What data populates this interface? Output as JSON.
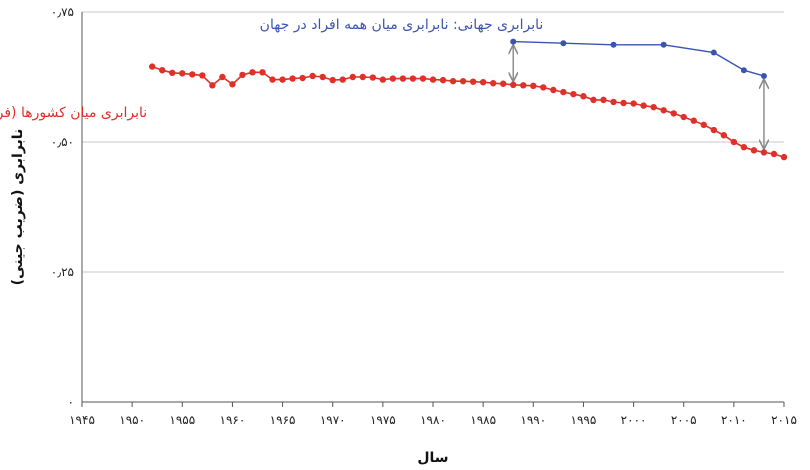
{
  "chart_data": {
    "type": "line",
    "xlabel": "سال",
    "ylabel": "نابرابری (ضریب جینی)",
    "xlim": [
      1945,
      2015
    ],
    "ylim": [
      0,
      0.75
    ],
    "x_ticks": [
      1945,
      1950,
      1955,
      1960,
      1965,
      1970,
      1975,
      1980,
      1985,
      1990,
      1995,
      2000,
      2005,
      2010,
      2015
    ],
    "x_tick_labels": [
      "۱۹۴۵",
      "۱۹۵۰",
      "۱۹۵۵",
      "۱۹۶۰",
      "۱۹۶۵",
      "۱۹۷۰",
      "۱۹۷۵",
      "۱۹۸۰",
      "۱۹۸۵",
      "۱۹۹۰",
      "۱۹۹۵",
      "۲۰۰۰",
      "۲۰۰۵",
      "۲۰۱۰",
      "۲۰۱۵"
    ],
    "y_ticks": [
      0,
      0.25,
      0.5,
      0.75
    ],
    "y_tick_labels": [
      "۰",
      "۰٫۲۵",
      "۰٫۵۰",
      "۰٫۷۵"
    ],
    "grid": "horizontal",
    "series": [
      {
        "name": "نابرابری میان کشورها (فرضی)",
        "color": "#e0302a",
        "label_at": [
          1951.5,
          0.548
        ],
        "x": [
          1952,
          1953,
          1954,
          1955,
          1956,
          1957,
          1958,
          1959,
          1960,
          1961,
          1962,
          1963,
          1964,
          1965,
          1966,
          1967,
          1968,
          1969,
          1970,
          1971,
          1972,
          1973,
          1974,
          1975,
          1976,
          1977,
          1978,
          1979,
          1980,
          1981,
          1982,
          1983,
          1984,
          1985,
          1986,
          1987,
          1988,
          1989,
          1990,
          1991,
          1992,
          1993,
          1994,
          1995,
          1996,
          1997,
          1998,
          1999,
          2000,
          2001,
          2002,
          2003,
          2004,
          2005,
          2006,
          2007,
          2008,
          2009,
          2010,
          2011,
          2012,
          2013,
          2014,
          2015
        ],
        "y": [
          0.645,
          0.638,
          0.633,
          0.632,
          0.63,
          0.628,
          0.609,
          0.625,
          0.611,
          0.629,
          0.634,
          0.634,
          0.62,
          0.62,
          0.622,
          0.623,
          0.627,
          0.625,
          0.619,
          0.62,
          0.625,
          0.625,
          0.624,
          0.62,
          0.622,
          0.622,
          0.622,
          0.622,
          0.62,
          0.619,
          0.617,
          0.617,
          0.616,
          0.615,
          0.613,
          0.612,
          0.61,
          0.609,
          0.608,
          0.605,
          0.6,
          0.596,
          0.592,
          0.588,
          0.581,
          0.581,
          0.577,
          0.575,
          0.574,
          0.57,
          0.567,
          0.561,
          0.555,
          0.548,
          0.541,
          0.533,
          0.523,
          0.513,
          0.5,
          0.49,
          0.484,
          0.48,
          0.477,
          0.471
        ]
      },
      {
        "name": "نابرابری جهانی: نابرابری میان همه افراد در جهان",
        "color": "#3a55b0",
        "label_at": [
          1991.0,
          0.717
        ],
        "x": [
          1988,
          1993,
          1998,
          2003,
          2008,
          2011,
          2013
        ],
        "y": [
          0.693,
          0.69,
          0.687,
          0.687,
          0.672,
          0.638,
          0.627
        ]
      }
    ],
    "gap_arrows": [
      {
        "x": 1988,
        "from": 0.61,
        "to": 0.693
      },
      {
        "x": 2013,
        "from": 0.48,
        "to": 0.627
      }
    ]
  }
}
